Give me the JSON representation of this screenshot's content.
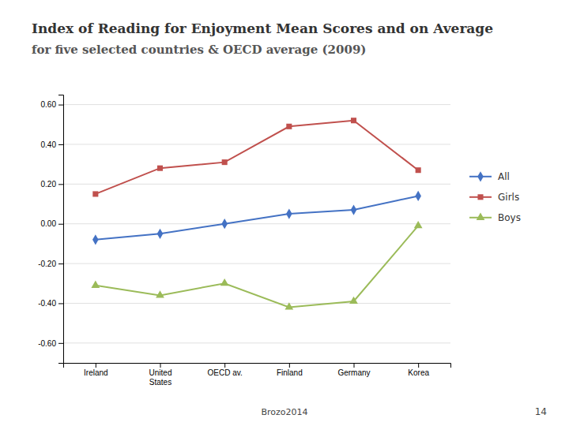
{
  "chart_data": {
    "type": "line",
    "title": "Index of Reading for Enjoyment Mean Scores and on Average",
    "subtitle": "for five selected countries & OECD average (2009)",
    "categories": [
      "Ireland",
      "United\nStates",
      "OECD av.",
      "Finland",
      "Germany",
      "Korea"
    ],
    "series": [
      {
        "name": "All",
        "color": "#4472C4",
        "marker": "diamond",
        "values": [
          -0.08,
          -0.05,
          0.0,
          0.05,
          0.07,
          0.14
        ]
      },
      {
        "name": "Girls",
        "color": "#C0504D",
        "marker": "square",
        "values": [
          0.15,
          0.28,
          0.31,
          0.49,
          0.52,
          0.27
        ]
      },
      {
        "name": "Boys",
        "color": "#9BBB59",
        "marker": "triangle",
        "values": [
          -0.31,
          -0.36,
          -0.3,
          -0.42,
          -0.39,
          -0.01
        ]
      }
    ],
    "ylim": [
      -0.7,
      0.65
    ],
    "yticks": [
      {
        "value": -0.6,
        "label": "-0.60"
      },
      {
        "value": -0.4,
        "label": "-0.40"
      },
      {
        "value": -0.2,
        "label": "-0.20"
      },
      {
        "value": 0,
        "label": "0.00"
      },
      {
        "value": 0.2,
        "label": "0.20"
      },
      {
        "value": 0.4,
        "label": "0.40"
      },
      {
        "value": 0.6,
        "label": "0.60"
      }
    ],
    "grid": true,
    "legend": "right",
    "annotations": [
      "Brozo2014",
      "14"
    ]
  }
}
